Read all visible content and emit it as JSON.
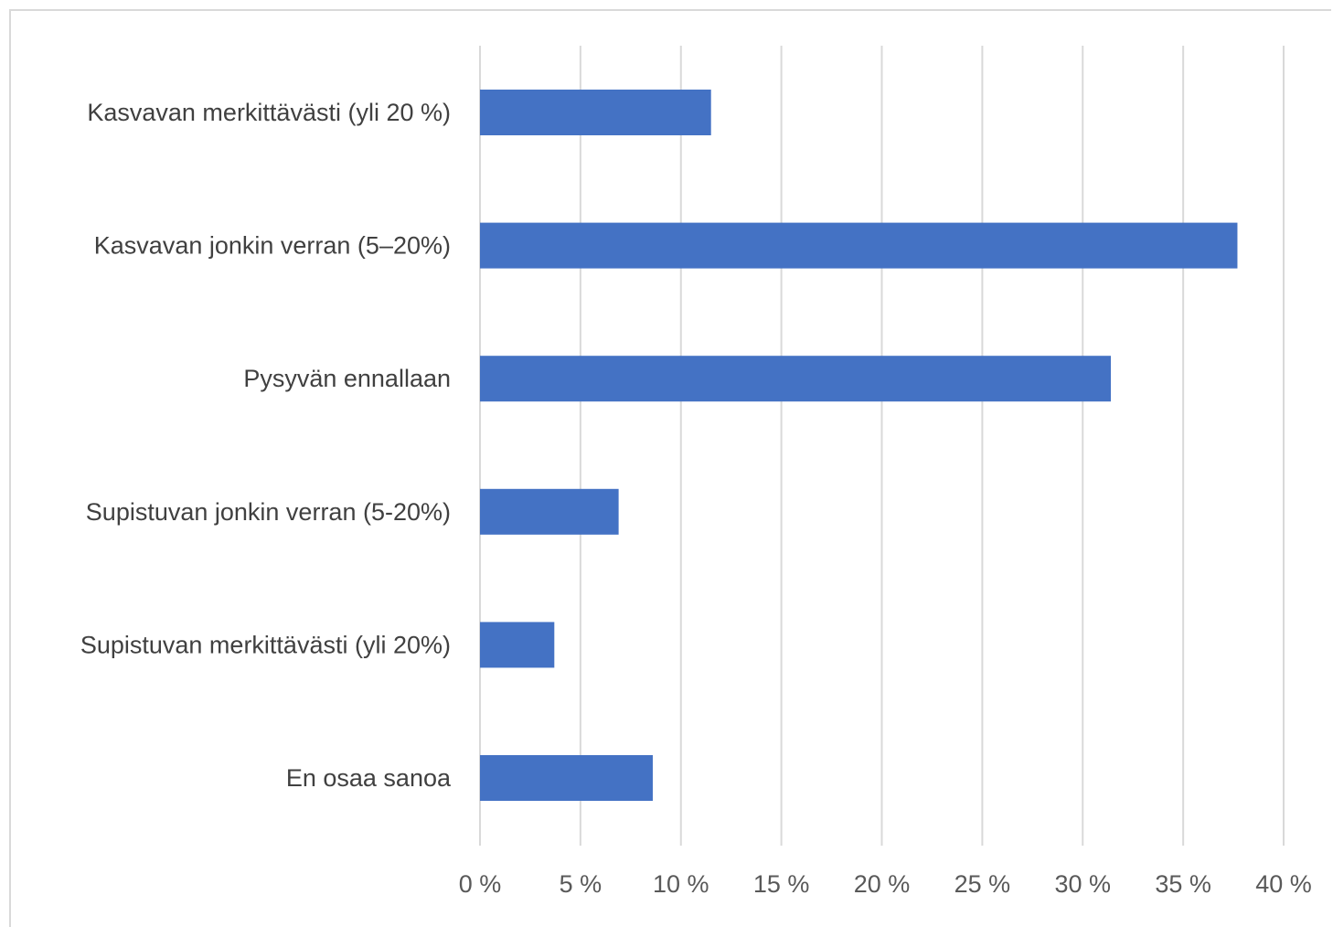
{
  "chart_data": {
    "type": "bar",
    "orientation": "horizontal",
    "title": "",
    "xlabel": "",
    "ylabel": "",
    "categories": [
      "Kasvavan merkittävästi (yli 20 %)",
      "Kasvavan jonkin verran (5–20%)",
      "Pysyvän ennallaan",
      "Supistuvan jonkin verran (5-20%)",
      "Supistuvan merkittävästi (yli 20%)",
      "En osaa sanoa"
    ],
    "values": [
      11.5,
      37.7,
      31.4,
      6.9,
      3.7,
      8.6
    ],
    "xlim": [
      0,
      40
    ],
    "ticks": [
      0,
      5,
      10,
      15,
      20,
      25,
      30,
      35,
      40
    ],
    "tick_labels": [
      "0 %",
      "5 %",
      "10 %",
      "15 %",
      "20 %",
      "25 %",
      "30 %",
      "35 %",
      "40 %"
    ],
    "grid": "vertical",
    "legend": "none",
    "bar_color": "#4472c4"
  }
}
